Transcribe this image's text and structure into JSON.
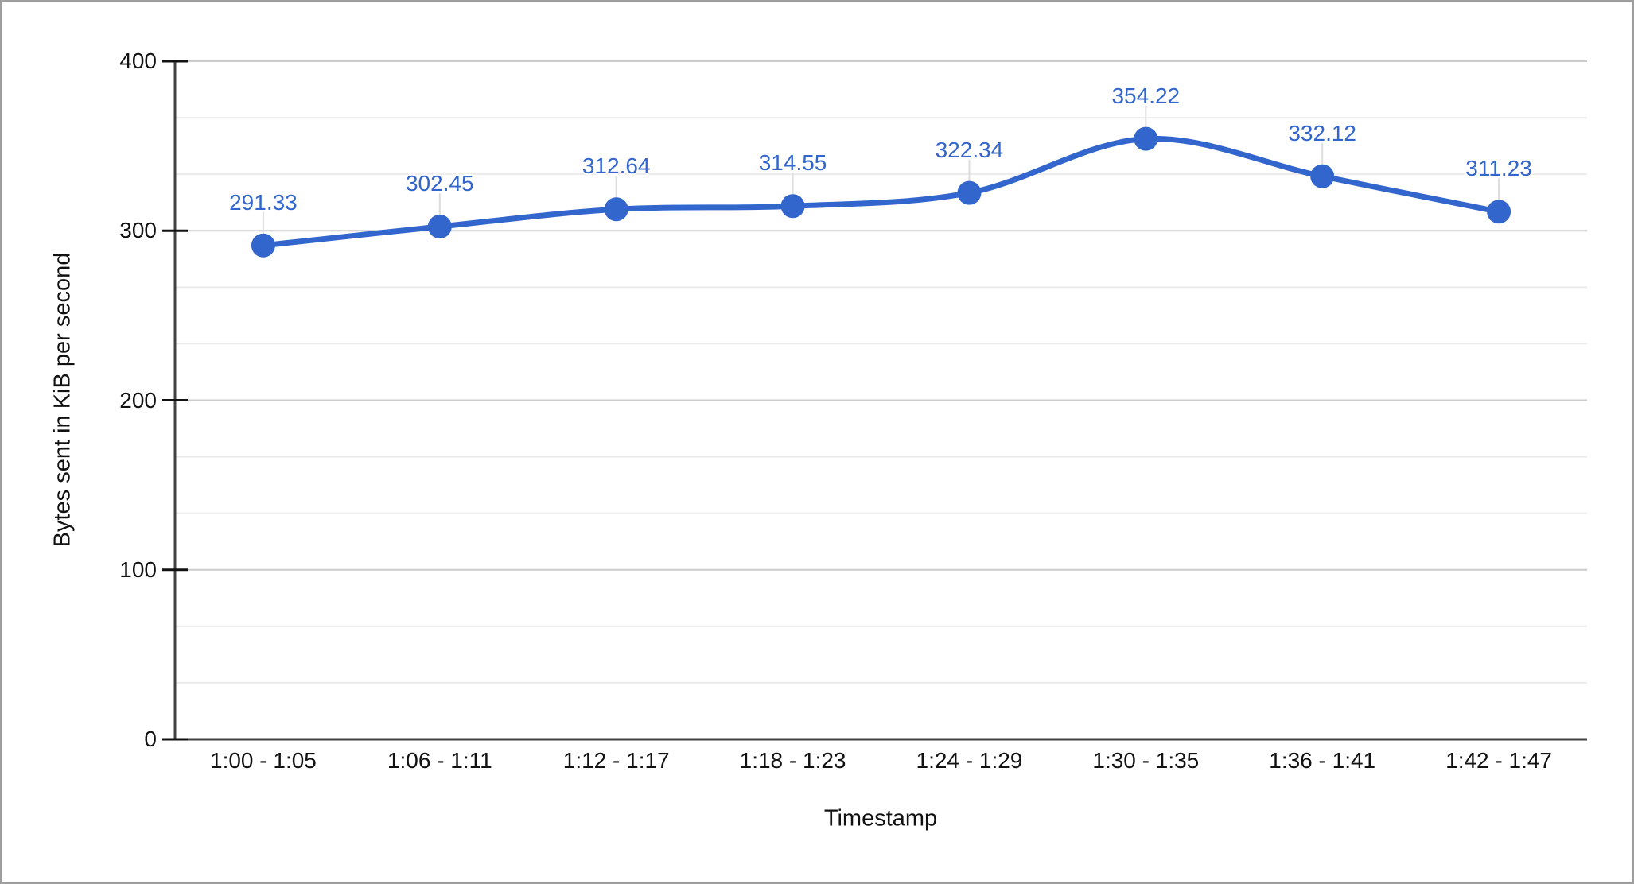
{
  "chart_data": {
    "type": "line",
    "smooth": true,
    "title": "",
    "categories": [
      "1:00 - 1:05",
      "1:06 - 1:11",
      "1:12 - 1:17",
      "1:18 - 1:23",
      "1:24 - 1:29",
      "1:30 - 1:35",
      "1:36 - 1:41",
      "1:42 - 1:47"
    ],
    "values": [
      291.33,
      302.45,
      312.64,
      314.55,
      322.34,
      354.22,
      332.12,
      311.23
    ],
    "point_labels": [
      "291.33",
      "302.45",
      "312.64",
      "314.55",
      "322.34",
      "354.22",
      "332.12",
      "311.23"
    ],
    "xlabel": "Timestamp",
    "ylabel": "Bytes sent in KiB per second",
    "ylim": [
      0,
      400
    ],
    "yticks": [
      0,
      100,
      200,
      300,
      400
    ],
    "ytick_labels": [
      "0",
      "100",
      "200",
      "300",
      "400"
    ],
    "minor_grid_divisions_per_major": 3,
    "grid": true,
    "legend": "none",
    "colors": {
      "series": "#3366cc",
      "annotation_text": "#3366cc",
      "annotation_stem": "#dddddd",
      "gridline": "#cccccc",
      "minor_gridline": "#ececec",
      "axis_line": "#424242",
      "tick": "#111111",
      "tick_text": "#111111",
      "background": "#ffffff",
      "page_border": "#9e9e9e"
    }
  }
}
